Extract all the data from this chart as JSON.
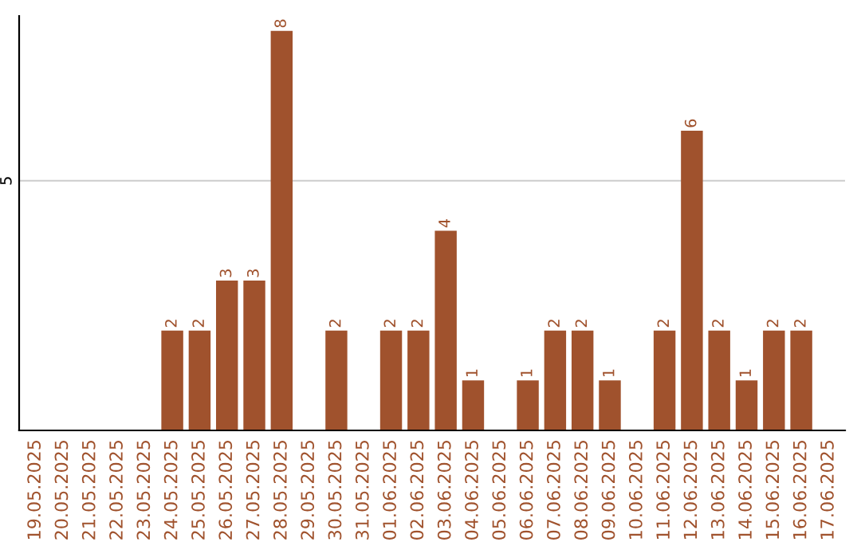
{
  "chart_data": {
    "type": "bar",
    "categories": [
      "19.05.2025",
      "20.05.2025",
      "21.05.2025",
      "22.05.2025",
      "23.05.2025",
      "24.05.2025",
      "25.05.2025",
      "26.05.2025",
      "27.05.2025",
      "28.05.2025",
      "29.05.2025",
      "30.05.2025",
      "31.05.2025",
      "01.06.2025",
      "02.06.2025",
      "03.06.2025",
      "04.06.2025",
      "05.06.2025",
      "06.06.2025",
      "07.06.2025",
      "08.06.2025",
      "09.06.2025",
      "10.06.2025",
      "11.06.2025",
      "12.06.2025",
      "13.06.2025",
      "14.06.2025",
      "15.06.2025",
      "16.06.2025",
      "17.06.2025"
    ],
    "values": [
      0,
      0,
      0,
      0,
      0,
      2,
      2,
      3,
      3,
      8,
      0,
      2,
      0,
      2,
      2,
      4,
      1,
      0,
      1,
      2,
      2,
      1,
      0,
      2,
      6,
      2,
      1,
      2,
      2,
      0
    ],
    "value_labels": [
      null,
      null,
      null,
      null,
      null,
      "2",
      "2",
      "3",
      "3",
      "8",
      null,
      "2",
      null,
      "2",
      "2",
      "4",
      "1",
      null,
      "1",
      "2",
      "2",
      "1",
      null,
      "2",
      "6",
      "2",
      "1",
      "2",
      "2",
      null
    ],
    "color": "#a0522d",
    "ylim": [
      0,
      8.3
    ],
    "yticks": [
      5
    ],
    "grid": "y"
  }
}
